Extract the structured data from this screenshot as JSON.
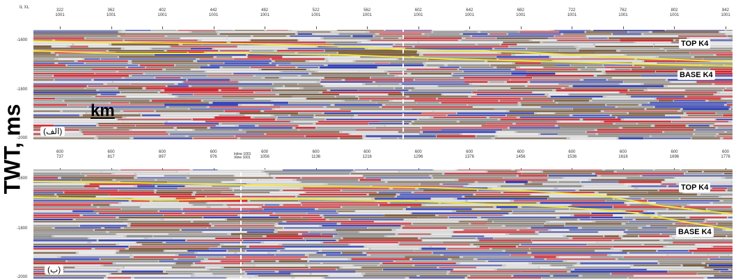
{
  "y_axis_label": "TWT, ms",
  "scale_label": "km",
  "panel_a": {
    "tag": "(الف)",
    "top_label": "TOP K4",
    "base_label": "BASE K4",
    "xl_header": "IL\nXL",
    "ticks": [
      "322\n1001",
      "362\n1001",
      "402\n1001",
      "442\n1001",
      "482\n1001",
      "522\n1001",
      "562\n1001",
      "602\n1001",
      "642\n1001",
      "682\n1001",
      "722\n1001",
      "762\n1001",
      "802\n1001",
      "842\n1001"
    ],
    "y_ticks": [
      "-1600",
      "-1800",
      "-2000"
    ]
  },
  "panel_b": {
    "tag": "(ب)",
    "top_label": "TOP K4",
    "base_label": "BASE K4",
    "ticks": [
      "600\n737",
      "600\n817",
      "600\n897",
      "600\n976",
      "600\n1056",
      "600\n1136",
      "600\n1216",
      "600\n1296",
      "600\n1376",
      "600\n1456",
      "600\n1536",
      "600\n1616",
      "600\n1696",
      "600\n1776"
    ],
    "y_ticks": [
      "-1600",
      "-1800",
      "-2000"
    ],
    "well_marker": "Inline 1001\nXline 1001"
  },
  "colors": {
    "red": "#d8202a",
    "blue": "#2838b8",
    "brown": "#7a5a3a",
    "background": "#c8c8c8",
    "horizon": "#f2e63a"
  }
}
